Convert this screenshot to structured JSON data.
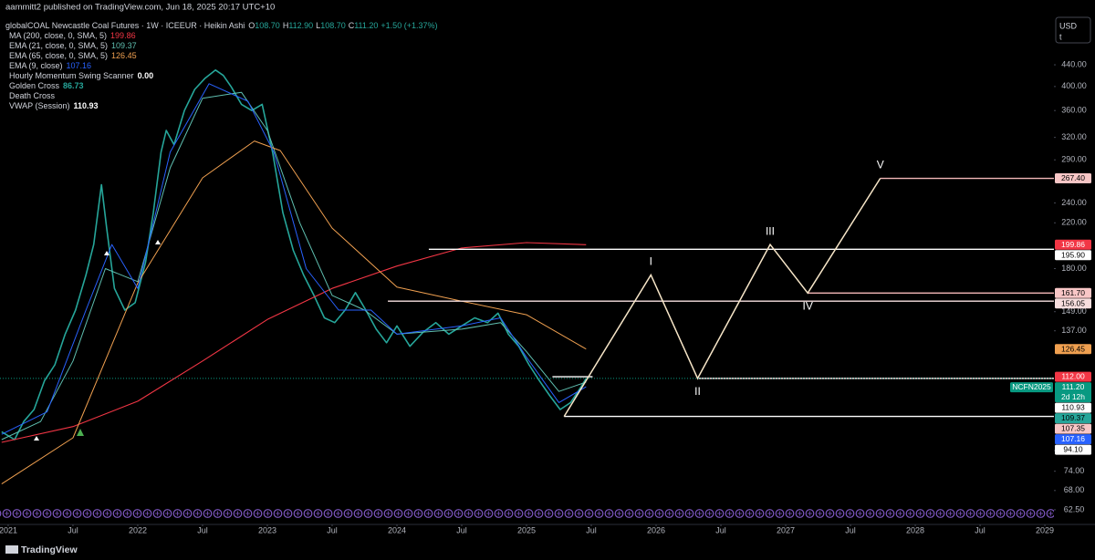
{
  "header": {
    "byline": "aammitt2 published on TradingView.com, Jun 18, 2025 20:17 UTC+10",
    "brand": "TradingView",
    "currency": "USD",
    "unit": "t"
  },
  "chart_data": {
    "type": "line",
    "log_scale": true,
    "grid": false,
    "title": "globalCOAL Newcastle Coal Futures · 1W · ICEEUR · Heikin Ashi",
    "ohlc": [
      {
        "label": "O",
        "value": "108.70"
      },
      {
        "label": "H",
        "value": "112.90"
      },
      {
        "label": "L",
        "value": "108.70"
      },
      {
        "label": "C",
        "value": "111.20"
      }
    ],
    "change": "+1.50 (+1.37%)",
    "xlim": [
      2020.937,
      2029.07
    ],
    "ylim": [
      58.6,
      544
    ],
    "xticks": [
      {
        "value": 2021,
        "label": "2021"
      },
      {
        "value": 2021.5,
        "label": "Jul"
      },
      {
        "value": 2022,
        "label": "2022"
      },
      {
        "value": 2022.5,
        "label": "Jul"
      },
      {
        "value": 2023,
        "label": "2023"
      },
      {
        "value": 2023.5,
        "label": "Jul"
      },
      {
        "value": 2024,
        "label": "2024"
      },
      {
        "value": 2024.5,
        "label": "Jul"
      },
      {
        "value": 2025,
        "label": "2025"
      },
      {
        "value": 2025.5,
        "label": "Jul"
      },
      {
        "value": 2026,
        "label": "2026"
      },
      {
        "value": 2026.5,
        "label": "Jul"
      },
      {
        "value": 2027,
        "label": "2027"
      },
      {
        "value": 2027.5,
        "label": "Jul"
      },
      {
        "value": 2028,
        "label": "2028"
      },
      {
        "value": 2028.5,
        "label": "Jul"
      },
      {
        "value": 2029,
        "label": "2029"
      }
    ],
    "yticks": [
      {
        "value": 440,
        "label": "440.00"
      },
      {
        "value": 400,
        "label": "400.00"
      },
      {
        "value": 360,
        "label": "360.00"
      },
      {
        "value": 320,
        "label": "320.00"
      },
      {
        "value": 290,
        "label": "290.00"
      },
      {
        "value": 240,
        "label": "240.00"
      },
      {
        "value": 220,
        "label": "220.00"
      },
      {
        "value": 180,
        "label": "180.00"
      },
      {
        "value": 149,
        "label": "149.00"
      },
      {
        "value": 137,
        "label": "137.00"
      },
      {
        "value": 81,
        "label": "81.00"
      },
      {
        "value": 74,
        "label": "74.00"
      },
      {
        "value": 68,
        "label": "68.00"
      },
      {
        "value": 62.5,
        "label": "62.50"
      }
    ],
    "series": [
      {
        "color": "#26a69a",
        "width": 1.6,
        "x": [
          2020.95,
          2021.05,
          2021.12,
          2021.2,
          2021.28,
          2021.36,
          2021.44,
          2021.52,
          2021.6,
          2021.66,
          2021.72,
          2021.76,
          2021.82,
          2021.9,
          2021.98,
          2022.06,
          2022.12,
          2022.18,
          2022.22,
          2022.28,
          2022.36,
          2022.44,
          2022.52,
          2022.6,
          2022.66,
          2022.72,
          2022.8,
          2022.88,
          2022.96,
          2023.04,
          2023.12,
          2023.2,
          2023.28,
          2023.36,
          2023.44,
          2023.52,
          2023.6,
          2023.68,
          2023.76,
          2023.84,
          2023.92,
          2024.0,
          2024.1,
          2024.2,
          2024.3,
          2024.4,
          2024.5,
          2024.6,
          2024.7,
          2024.78,
          2024.86,
          2024.94,
          2025.02,
          2025.1,
          2025.18,
          2025.26,
          2025.34,
          2025.42,
          2025.46
        ],
        "values": [
          88,
          85,
          92,
          97,
          110,
          118,
          135,
          150,
          175,
          200,
          260,
          215,
          165,
          150,
          155,
          185,
          230,
          300,
          330,
          310,
          360,
          395,
          415,
          430,
          420,
          400,
          370,
          360,
          370,
          300,
          230,
          195,
          175,
          160,
          145,
          142,
          150,
          162,
          150,
          138,
          130,
          140,
          128,
          136,
          142,
          135,
          140,
          145,
          142,
          148,
          135,
          128,
          118,
          110,
          103,
          97,
          100,
          107,
          111.2
        ]
      },
      {
        "name": "MA (200, close, 0, SMA, 5)",
        "last": "199.86",
        "color": "#f23645",
        "width": 1.1,
        "x": [
          2020.95,
          2021.5,
          2022.0,
          2022.5,
          2023.0,
          2023.5,
          2024.0,
          2024.5,
          2025.0,
          2025.46
        ],
        "values": [
          84,
          90,
          100.6,
          120,
          144,
          165,
          182,
          197,
          201.7,
          199.86
        ]
      },
      {
        "name": "EMA (21, close, 0, SMA, 5)",
        "last": "109.37",
        "color": "#5fbfb0",
        "width": 1,
        "x": [
          2020.95,
          2021.25,
          2021.5,
          2021.75,
          2022.0,
          2022.25,
          2022.5,
          2022.8,
          2023.0,
          2023.25,
          2023.5,
          2023.75,
          2024.0,
          2024.5,
          2024.8,
          2025.0,
          2025.25,
          2025.46
        ],
        "values": [
          85,
          92,
          120,
          180,
          170,
          280,
          380,
          390,
          330,
          220,
          160,
          150,
          135,
          138,
          142,
          125,
          105,
          109.37
        ]
      },
      {
        "name": "EMA (65, close, 0, SMA, 5)",
        "last": "126.45",
        "color": "#f0a050",
        "width": 1,
        "x": [
          2020.95,
          2021.5,
          2022.0,
          2022.5,
          2022.9,
          2023.1,
          2023.5,
          2024.0,
          2024.5,
          2025.0,
          2025.46
        ],
        "values": [
          70,
          85.7,
          169,
          268,
          315,
          302,
          215,
          166,
          156,
          147,
          126.45
        ]
      },
      {
        "name": "EMA (9, close)",
        "last": "107.16",
        "color": "#2962ff",
        "width": 1,
        "x": [
          2020.95,
          2021.3,
          2021.6,
          2021.8,
          2022.0,
          2022.25,
          2022.55,
          2022.85,
          2023.05,
          2023.3,
          2023.55,
          2023.8,
          2024.0,
          2024.5,
          2024.8,
          2025.0,
          2025.25,
          2025.46
        ],
        "values": [
          87,
          96,
          150,
          200,
          165,
          300,
          405,
          375,
          300,
          180,
          150,
          150,
          135,
          140,
          145,
          122,
          100,
          107.16
        ]
      }
    ],
    "indicators": [
      {
        "name": "Hourly Momentum Swing Scanner",
        "value": "0.00"
      },
      {
        "name": "Golden Cross",
        "value": "86.73"
      },
      {
        "name": "Death Cross"
      },
      {
        "name": "VWAP (Session)",
        "value": "110.93"
      }
    ],
    "levels": [
      {
        "value": 195.9,
        "x_start": 2024.246,
        "color": "#ffffff"
      },
      {
        "value": 156.05,
        "x_start": 2023.93,
        "color": "#f7e0e0"
      },
      {
        "value": 161.7,
        "x_start": 2027.17,
        "color": "#f4b8b8"
      },
      {
        "value": 267.4,
        "x_start": 2027.73,
        "color": "#f4b8b8"
      },
      {
        "value": 111.2,
        "x_start": 2026.32,
        "color": "#f7e0e0"
      },
      {
        "value": 94.1,
        "x_start": 2025.29,
        "color": "#ffffff"
      },
      {
        "value": 112,
        "x_start": 2025.2,
        "x_end": 2025.51,
        "color": "#ffffff"
      }
    ],
    "wave": {
      "color": "#f7e6c8",
      "x": [
        2025.29,
        2025.96,
        2026.32,
        2026.88,
        2027.17,
        2027.73
      ],
      "values": [
        94.1,
        175,
        111.2,
        200,
        161.7,
        267.4
      ],
      "labels": [
        "I",
        "II",
        "III",
        "IV",
        "V"
      ]
    },
    "price_labels": [
      {
        "value": 267.4,
        "label": "267.40",
        "color": "#f8c6c6",
        "text_color": "#000"
      },
      {
        "value": 199.86,
        "label": "199.86",
        "color": "#f23645",
        "text_color": "#fff"
      },
      {
        "value": 195.9,
        "label": "195.90",
        "color": "#ffffff",
        "text_color": "#000"
      },
      {
        "value": 161.7,
        "label": "161.70",
        "color": "#f8c6c6",
        "text_color": "#000"
      },
      {
        "value": 156.05,
        "label": "156.05",
        "color": "#f8dede",
        "text_color": "#000"
      },
      {
        "value": 126.45,
        "label": "126.45",
        "color": "#f0a050",
        "text_color": "#000"
      },
      {
        "value": 112,
        "label": "112.00",
        "color": "#f23645",
        "text_color": "#fff"
      },
      {
        "value": 111.2,
        "label": "111.20",
        "color": "#089981",
        "text_color": "#fff",
        "tag": "NCFN2025",
        "countdown": "2d 12h",
        "line": "dotted"
      },
      {
        "value": 110.93,
        "label": "110.93",
        "color": "#ffffff",
        "text_color": "#000"
      },
      {
        "value": 109.37,
        "label": "109.37",
        "color": "#26a69a",
        "text_color": "#000"
      },
      {
        "value": 107.35,
        "label": "107.35",
        "color": "#f8c6c6",
        "text_color": "#000"
      },
      {
        "value": 107.16,
        "label": "107.16",
        "color": "#2962ff",
        "text_color": "#fff"
      },
      {
        "value": 94.1,
        "label": "94.10",
        "color": "#ffffff",
        "text_color": "#000"
      }
    ]
  }
}
